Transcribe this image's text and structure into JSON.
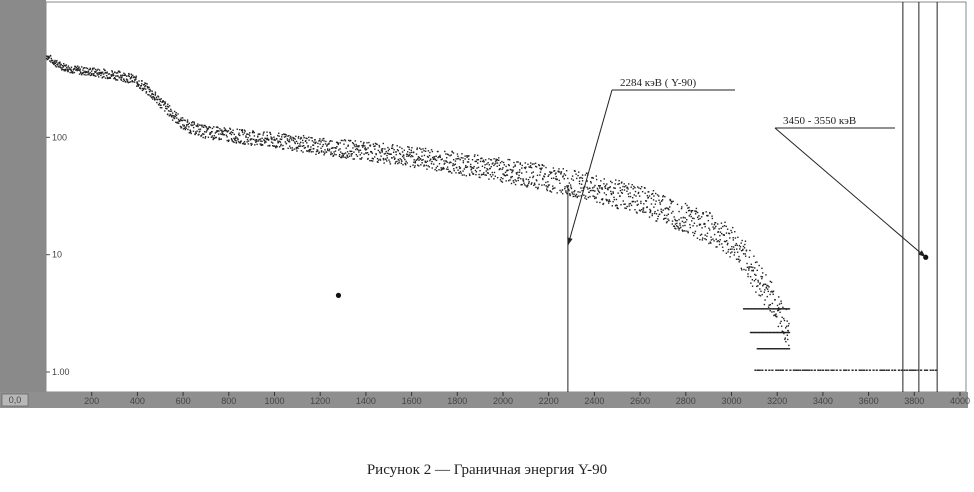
{
  "caption": "Рисунок 2 — Граничная энергия Y-90",
  "chart_data": {
    "type": "scatter",
    "title": "",
    "xlabel": "",
    "ylabel": "",
    "x_axis_origin_label": "0,0",
    "xlim": [
      0,
      4000
    ],
    "ylim": [
      1,
      1000
    ],
    "y_scale": "log",
    "grid": false,
    "y_ticks": [
      {
        "value": 1,
        "label": "1.00"
      },
      {
        "value": 10,
        "label": "10"
      },
      {
        "value": 100,
        "label": "100"
      }
    ],
    "x_ticks": [
      {
        "value": 200,
        "label": "200"
      },
      {
        "value": 400,
        "label": "400"
      },
      {
        "value": 600,
        "label": "600"
      },
      {
        "value": 800,
        "label": "800"
      },
      {
        "value": 1000,
        "label": "1000"
      },
      {
        "value": 1200,
        "label": "1200"
      },
      {
        "value": 1400,
        "label": "1400"
      },
      {
        "value": 1600,
        "label": "1600"
      },
      {
        "value": 1800,
        "label": "1800"
      },
      {
        "value": 2000,
        "label": "2000"
      },
      {
        "value": 2200,
        "label": "2200"
      },
      {
        "value": 2400,
        "label": "2400"
      },
      {
        "value": 2600,
        "label": "2600"
      },
      {
        "value": 2800,
        "label": "2800"
      },
      {
        "value": 3000,
        "label": "3000"
      },
      {
        "value": 3200,
        "label": "3200"
      },
      {
        "value": 3400,
        "label": "3400"
      },
      {
        "value": 3600,
        "label": "3600"
      },
      {
        "value": 3800,
        "label": "3800"
      },
      {
        "value": 4000,
        "label": "4000"
      }
    ],
    "series": [
      {
        "points": [
          [
            0,
            500
          ],
          [
            50,
            420
          ],
          [
            100,
            390
          ],
          [
            150,
            375
          ],
          [
            200,
            365
          ],
          [
            250,
            355
          ],
          [
            300,
            345
          ],
          [
            350,
            330
          ],
          [
            400,
            300
          ],
          [
            450,
            250
          ],
          [
            500,
            200
          ],
          [
            550,
            160
          ],
          [
            600,
            130
          ],
          [
            650,
            120
          ],
          [
            700,
            112
          ],
          [
            800,
            106
          ],
          [
            900,
            100
          ],
          [
            1000,
            95
          ],
          [
            1100,
            90
          ],
          [
            1200,
            85
          ],
          [
            1300,
            81
          ],
          [
            1400,
            77
          ],
          [
            1500,
            73
          ],
          [
            1600,
            69
          ],
          [
            1700,
            65
          ],
          [
            1800,
            61
          ],
          [
            1900,
            57
          ],
          [
            2000,
            53
          ],
          [
            2100,
            49
          ],
          [
            2200,
            45
          ],
          [
            2300,
            41
          ],
          [
            2400,
            37
          ],
          [
            2500,
            33
          ],
          [
            2600,
            29
          ],
          [
            2700,
            25
          ],
          [
            2800,
            21
          ],
          [
            2900,
            17
          ],
          [
            3000,
            13
          ],
          [
            3050,
            10
          ],
          [
            3100,
            7
          ],
          [
            3150,
            5
          ],
          [
            3200,
            3.5
          ],
          [
            3250,
            2.2
          ]
        ]
      }
    ],
    "outlier_points": [
      [
        1280,
        4.5
      ],
      [
        3850,
        9.5
      ]
    ],
    "annotations": [
      {
        "text": "2284 кэВ ( Y-90)",
        "x": 2284,
        "y": 12
      },
      {
        "text": "3450 - 3550 кэВ",
        "x": 3850,
        "y": 9.5
      }
    ],
    "vertical_lines": [
      2284,
      3750,
      3820,
      3900
    ]
  }
}
